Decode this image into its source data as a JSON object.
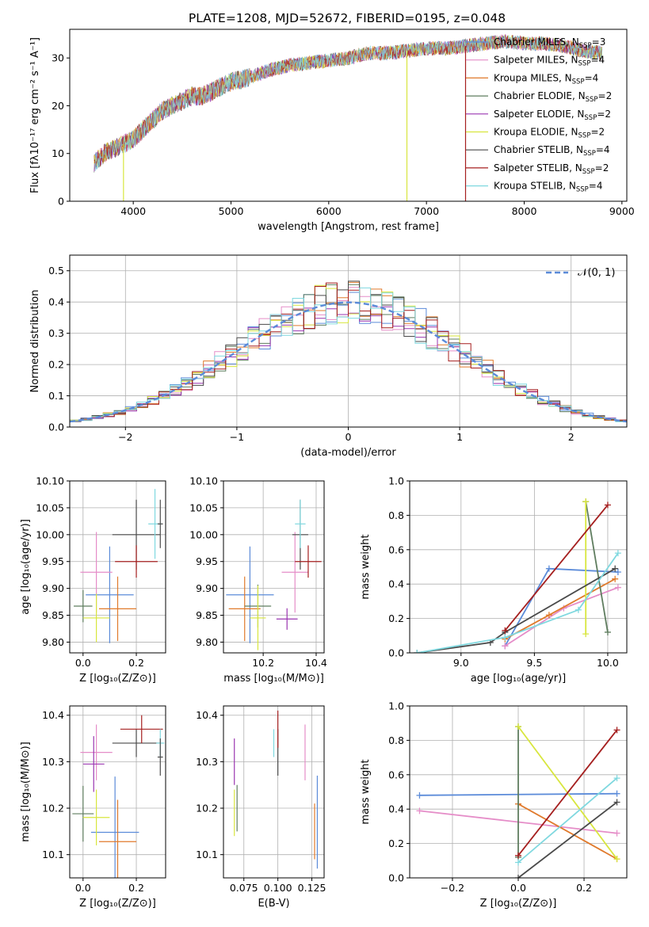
{
  "figure": {
    "title": "PLATE=1208, MJD=52672, FIBERID=0195, z=0.048",
    "legend": [
      {
        "label": "Chabrier MILES, N",
        "nssp": "3",
        "color": "#5b8bd9"
      },
      {
        "label": "Salpeter MILES, N",
        "nssp": "4",
        "color": "#e58dc8"
      },
      {
        "label": "Kroupa MILES, N",
        "nssp": "4",
        "color": "#e07a2c"
      },
      {
        "label": "Chabrier ELODIE, N",
        "nssp": "2",
        "color": "#5f7d5f"
      },
      {
        "label": "Salpeter ELODIE, N",
        "nssp": "2",
        "color": "#9a35b0"
      },
      {
        "label": "Kroupa ELODIE, N",
        "nssp": "2",
        "color": "#d8e63e"
      },
      {
        "label": "Chabrier STELIB, N",
        "nssp": "4",
        "color": "#4a4a4a"
      },
      {
        "label": "Salpeter STELIB, N",
        "nssp": "2",
        "color": "#a51f1f"
      },
      {
        "label": "Kroupa STELIB, N",
        "nssp": "4",
        "color": "#7fd8df"
      }
    ],
    "nssp_subscript": "SSP"
  },
  "chart_data": [
    {
      "id": "spectrum",
      "type": "line",
      "xlabel": "wavelength [Angstrom, rest frame]",
      "ylabel": "Flux [fλ10⁻¹⁷ erg cm⁻² s⁻¹ A⁻¹]",
      "xlim": [
        3350,
        9050
      ],
      "ylim": [
        0,
        36
      ],
      "xticks": [
        4000,
        5000,
        6000,
        7000,
        8000,
        9000
      ],
      "yticks": [
        0,
        10,
        20,
        30
      ],
      "grid": false,
      "series_x": [
        3600,
        3700,
        3800,
        3900,
        4000,
        4100,
        4200,
        4300,
        4400,
        4500,
        4600,
        4700,
        4800,
        4900,
        5000,
        5200,
        5400,
        5600,
        5800,
        6000,
        6200,
        6400,
        6600,
        6800,
        7000,
        7200,
        7400,
        7600,
        7800,
        8000,
        8200,
        8400,
        8600,
        8800
      ],
      "series_y": [
        8,
        10,
        11,
        12,
        13,
        15,
        17,
        19,
        20,
        21,
        22,
        22,
        23,
        24,
        25,
        26,
        27.5,
        28.5,
        29,
        29.5,
        30,
        31,
        31,
        31.5,
        32,
        32,
        32.5,
        33,
        33.5,
        33,
        33,
        32.5,
        31.5,
        31
      ],
      "dropouts": [
        {
          "x": 6800,
          "color": "#d8e63e"
        },
        {
          "x": 7400,
          "color": "#a51f1f"
        },
        {
          "x": 3900,
          "color": "#d8e63e"
        }
      ]
    },
    {
      "id": "residuals",
      "type": "line",
      "xlabel": "(data-model)/error",
      "ylabel": "Normed distribution",
      "xlim": [
        -2.5,
        2.5
      ],
      "ylim": [
        0,
        0.55
      ],
      "xticks": [
        -2,
        -1,
        0,
        1,
        2
      ],
      "yticks": [
        0.0,
        0.1,
        0.2,
        0.3,
        0.4,
        0.5
      ],
      "grid": true,
      "gaussian_label": "𝒩(0, 1)",
      "gaussian_color": "#5b8bd9"
    },
    {
      "id": "age_vs_Z",
      "type": "scatter",
      "xlabel": "Z [log₁₀(Z/Z⊙)]",
      "ylabel": "age  [log₁₀(age/yr)]",
      "xlim": [
        -0.05,
        0.31
      ],
      "ylim": [
        9.78,
        10.1
      ],
      "xticks": [
        0.0,
        0.2
      ],
      "yticks": [
        9.8,
        9.85,
        9.9,
        9.95,
        10.0,
        10.05,
        10.1
      ],
      "grid": true,
      "points": [
        {
          "x": 0.1,
          "y": 9.888,
          "xerr": 0.09,
          "yerr": 0.09,
          "c": 0
        },
        {
          "x": 0.05,
          "y": 9.93,
          "xerr": 0.06,
          "yerr": 0.075,
          "c": 1
        },
        {
          "x": 0.13,
          "y": 9.862,
          "xerr": 0.07,
          "yerr": 0.06,
          "c": 2
        },
        {
          "x": 0.0,
          "y": 9.867,
          "xerr": 0.035,
          "yerr": 0.03,
          "c": 3
        },
        {
          "x": 0.05,
          "y": 9.845,
          "xerr": 0.05,
          "yerr": 0.045,
          "c": 5
        },
        {
          "x": 0.2,
          "y": 10.0,
          "xerr": 0.09,
          "yerr": 0.065,
          "c": 6
        },
        {
          "x": 0.2,
          "y": 9.95,
          "xerr": 0.08,
          "yerr": 0.03,
          "c": 7
        },
        {
          "x": 0.27,
          "y": 10.02,
          "xerr": 0.025,
          "yerr": 0.065,
          "c": 8
        },
        {
          "x": 0.29,
          "y": 10.02,
          "xerr": 0.01,
          "yerr": 0.045,
          "c": 6
        }
      ]
    },
    {
      "id": "age_vs_mass",
      "type": "scatter",
      "xlabel": "mass [log₁₀(M/M⊙)]",
      "ylabel": "",
      "xlim": [
        10.05,
        10.43
      ],
      "ylim": [
        9.78,
        10.1
      ],
      "xticks": [
        10.2,
        10.4
      ],
      "yticks": [
        9.8,
        9.85,
        9.9,
        9.95,
        10.0,
        10.05,
        10.1
      ],
      "grid": true,
      "points": [
        {
          "x": 10.15,
          "y": 9.888,
          "xerr": 0.09,
          "yerr": 0.09,
          "c": 0
        },
        {
          "x": 10.32,
          "y": 9.93,
          "xerr": 0.05,
          "yerr": 0.075,
          "c": 1
        },
        {
          "x": 10.13,
          "y": 9.862,
          "xerr": 0.06,
          "yerr": 0.06,
          "c": 2
        },
        {
          "x": 10.18,
          "y": 9.867,
          "xerr": 0.05,
          "yerr": 0.04,
          "c": 3
        },
        {
          "x": 10.29,
          "y": 9.843,
          "xerr": 0.04,
          "yerr": 0.02,
          "c": 4
        },
        {
          "x": 10.18,
          "y": 9.845,
          "xerr": 0.03,
          "yerr": 0.06,
          "c": 5
        },
        {
          "x": 10.34,
          "y": 10.0,
          "xerr": 0.03,
          "yerr": 0.065,
          "c": 6
        },
        {
          "x": 10.37,
          "y": 9.95,
          "xerr": 0.05,
          "yerr": 0.03,
          "c": 7
        },
        {
          "x": 10.34,
          "y": 10.02,
          "xerr": 0.02,
          "yerr": 0.045,
          "c": 8
        }
      ]
    },
    {
      "id": "weight_vs_age",
      "type": "line",
      "xlabel": "age  [log₁₀(age/yr)]",
      "ylabel": "mass weight",
      "xlim": [
        8.65,
        10.13
      ],
      "ylim": [
        0,
        1.0
      ],
      "xticks": [
        9.0,
        9.5,
        10.0
      ],
      "yticks": [
        0.0,
        0.2,
        0.4,
        0.6,
        0.8,
        1.0
      ],
      "grid": true,
      "series": [
        {
          "c": 0,
          "x": [
            9.3,
            9.6,
            10.07
          ],
          "y": [
            0.04,
            0.49,
            0.47
          ]
        },
        {
          "c": 1,
          "x": [
            9.3,
            9.7,
            10.07
          ],
          "y": [
            0.04,
            0.26,
            0.38
          ]
        },
        {
          "c": 2,
          "x": [
            9.3,
            9.6,
            10.05
          ],
          "y": [
            0.08,
            0.22,
            0.43
          ]
        },
        {
          "c": 3,
          "x": [
            9.85,
            10.0
          ],
          "y": [
            0.88,
            0.12
          ]
        },
        {
          "c": 5,
          "x": [
            9.85,
            9.85
          ],
          "y": [
            0.88,
            0.11
          ]
        },
        {
          "c": 6,
          "x": [
            8.7,
            9.2,
            9.3,
            10.05
          ],
          "y": [
            0.0,
            0.06,
            0.12,
            0.49
          ]
        },
        {
          "c": 7,
          "x": [
            9.3,
            10.0
          ],
          "y": [
            0.13,
            0.86
          ]
        },
        {
          "c": 8,
          "x": [
            8.7,
            9.3,
            9.8,
            10.07
          ],
          "y": [
            0.0,
            0.09,
            0.25,
            0.58
          ]
        }
      ]
    },
    {
      "id": "mass_vs_Z",
      "type": "scatter",
      "xlabel": "Z [log₁₀(Z/Z⊙)]",
      "ylabel": "mass [log₁₀(M/M⊙)]",
      "xlim": [
        -0.05,
        0.31
      ],
      "ylim": [
        10.05,
        10.42
      ],
      "xticks": [
        0.0,
        0.2
      ],
      "yticks": [
        10.1,
        10.2,
        10.3,
        10.4
      ],
      "grid": true,
      "points": [
        {
          "x": 0.12,
          "y": 10.148,
          "xerr": 0.09,
          "yerr": 0.12,
          "c": 0
        },
        {
          "x": 0.05,
          "y": 10.32,
          "xerr": 0.06,
          "yerr": 0.06,
          "c": 1
        },
        {
          "x": 0.13,
          "y": 10.128,
          "xerr": 0.07,
          "yerr": 0.09,
          "c": 2
        },
        {
          "x": 0.0,
          "y": 10.188,
          "xerr": 0.04,
          "yerr": 0.06,
          "c": 3
        },
        {
          "x": 0.04,
          "y": 10.295,
          "xerr": 0.04,
          "yerr": 0.06,
          "c": 4
        },
        {
          "x": 0.05,
          "y": 10.18,
          "xerr": 0.05,
          "yerr": 0.06,
          "c": 5
        },
        {
          "x": 0.2,
          "y": 10.34,
          "xerr": 0.09,
          "yerr": 0.03,
          "c": 6
        },
        {
          "x": 0.22,
          "y": 10.37,
          "xerr": 0.08,
          "yerr": 0.03,
          "c": 7
        },
        {
          "x": 0.29,
          "y": 10.34,
          "xerr": 0.015,
          "yerr": 0.03,
          "c": 8
        },
        {
          "x": 0.29,
          "y": 10.31,
          "xerr": 0.01,
          "yerr": 0.04,
          "c": 6
        }
      ]
    },
    {
      "id": "mass_vs_EBV",
      "type": "scatter",
      "xlabel": "E(B-V)",
      "ylabel": "",
      "xlim": [
        0.06,
        0.134
      ],
      "ylim": [
        10.05,
        10.42
      ],
      "xticks": [
        0.075,
        0.1,
        0.125
      ],
      "yticks": [
        10.1,
        10.2,
        10.3,
        10.4
      ],
      "grid": true,
      "points": [
        {
          "x": 0.129,
          "y": 10.17,
          "yerr": 0.1,
          "c": 0
        },
        {
          "x": 0.12,
          "y": 10.32,
          "yerr": 0.06,
          "c": 1
        },
        {
          "x": 0.127,
          "y": 10.15,
          "yerr": 0.06,
          "c": 2
        },
        {
          "x": 0.07,
          "y": 10.2,
          "yerr": 0.05,
          "c": 3
        },
        {
          "x": 0.068,
          "y": 10.3,
          "yerr": 0.05,
          "c": 4
        },
        {
          "x": 0.068,
          "y": 10.19,
          "yerr": 0.05,
          "c": 5
        },
        {
          "x": 0.1,
          "y": 10.32,
          "yerr": 0.05,
          "c": 6
        },
        {
          "x": 0.1,
          "y": 10.37,
          "yerr": 0.04,
          "c": 7
        },
        {
          "x": 0.097,
          "y": 10.34,
          "yerr": 0.03,
          "c": 8
        }
      ]
    },
    {
      "id": "weight_vs_Z",
      "type": "line",
      "xlabel": "Z [log₁₀(Z/Z⊙)]",
      "ylabel": "mass weight",
      "xlim": [
        -0.33,
        0.33
      ],
      "ylim": [
        0,
        1.0
      ],
      "xticks": [
        -0.2,
        0.0,
        0.2
      ],
      "yticks": [
        0.0,
        0.2,
        0.4,
        0.6,
        0.8,
        1.0
      ],
      "grid": true,
      "series": [
        {
          "c": 0,
          "x": [
            -0.3,
            0.3
          ],
          "y": [
            0.48,
            0.49
          ]
        },
        {
          "c": 1,
          "x": [
            -0.3,
            0.3
          ],
          "y": [
            0.39,
            0.26
          ]
        },
        {
          "c": 2,
          "x": [
            0.0,
            0.3
          ],
          "y": [
            0.43,
            0.11
          ]
        },
        {
          "c": 3,
          "x": [
            0.0,
            0.0
          ],
          "y": [
            0.88,
            0.12
          ]
        },
        {
          "c": 5,
          "x": [
            0.0,
            0.3
          ],
          "y": [
            0.88,
            0.11
          ]
        },
        {
          "c": 6,
          "x": [
            0.0,
            0.3
          ],
          "y": [
            0.0,
            0.44
          ]
        },
        {
          "c": 7,
          "x": [
            0.0,
            0.3
          ],
          "y": [
            0.13,
            0.86
          ]
        },
        {
          "c": 8,
          "x": [
            0.0,
            0.3
          ],
          "y": [
            0.09,
            0.58
          ]
        }
      ]
    }
  ]
}
